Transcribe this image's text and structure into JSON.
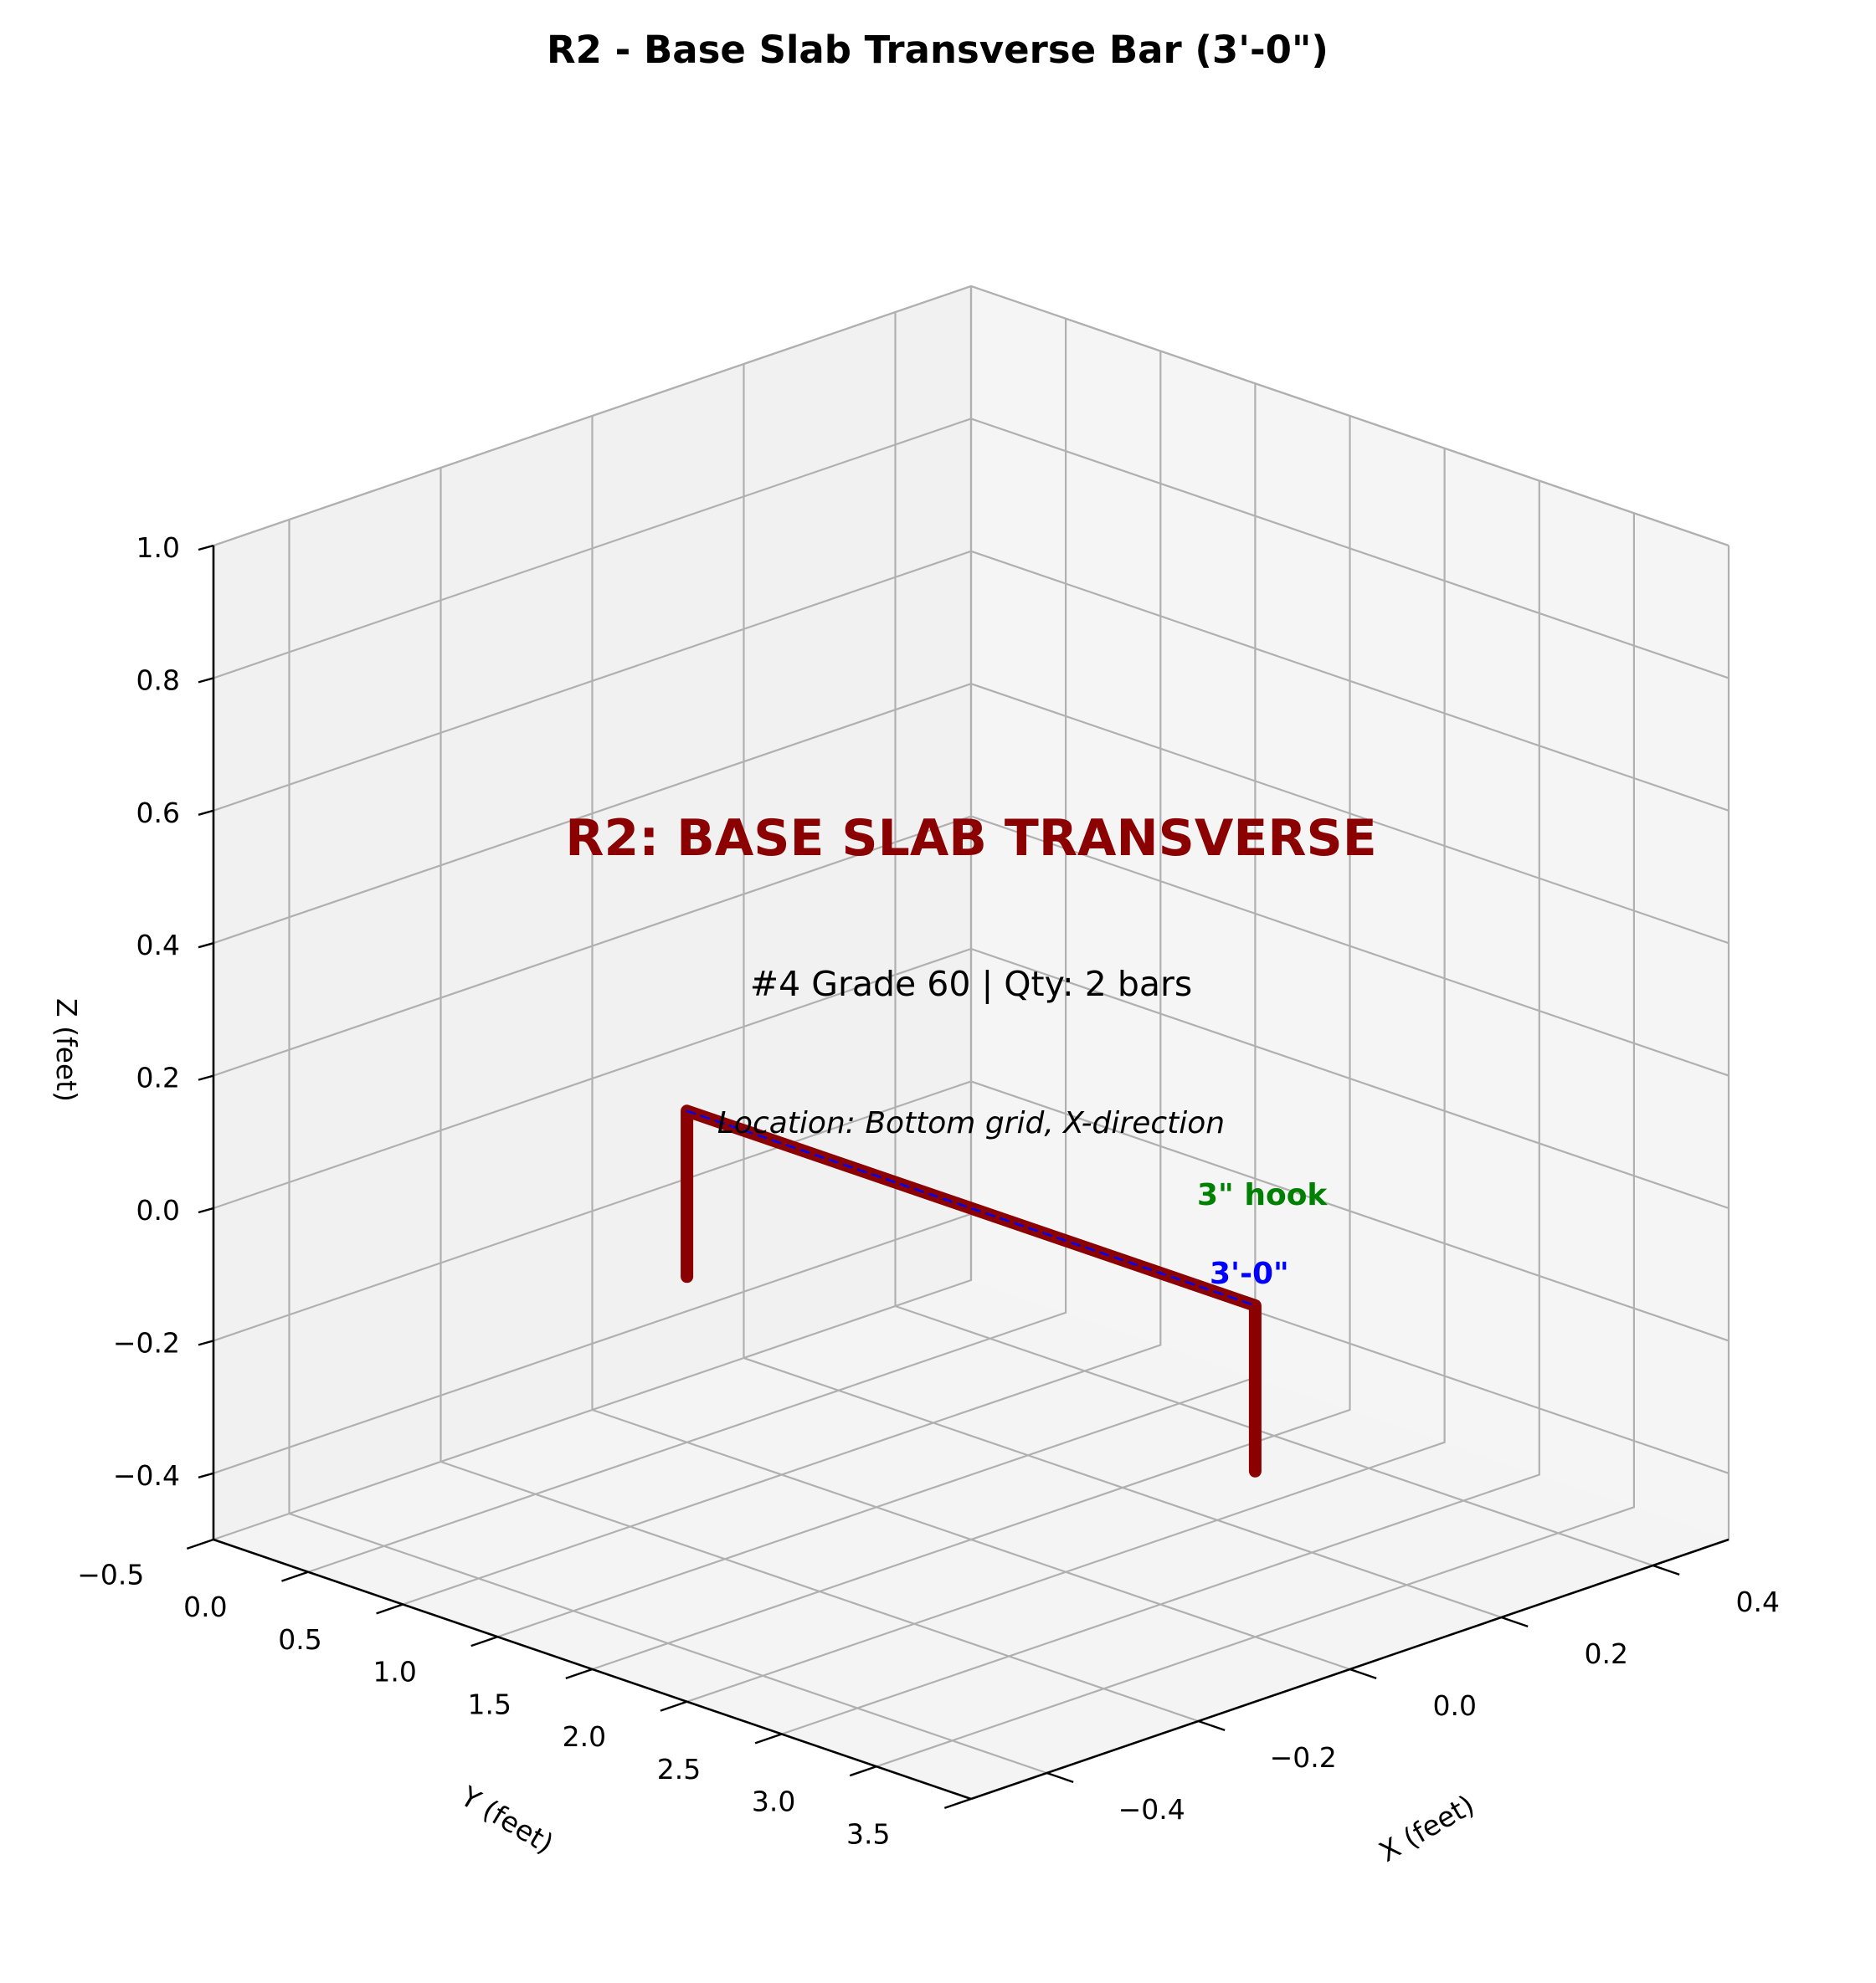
{
  "figure": {
    "title": "R2 - Base Slab Transverse Bar (3'-0\")"
  },
  "chart_data": {
    "type": "line3d",
    "title": "R2 - Base Slab Transverse Bar (3'-0\")",
    "xlabel": "X (feet)",
    "ylabel": "Y (feet)",
    "zlabel": "Z (feet)",
    "xlim": [
      -0.5,
      3.5
    ],
    "ylim": [
      -0.5,
      0.5
    ],
    "zlim": [
      -0.5,
      1.0
    ],
    "x_ticks": [
      "−0.5",
      "0.0",
      "0.5",
      "1.0",
      "1.5",
      "2.0",
      "2.5",
      "3.0",
      "3.5"
    ],
    "y_ticks": [
      "−0.4",
      "−0.2",
      "0.0",
      "0.2",
      "0.4"
    ],
    "z_ticks": [
      "−0.4",
      "−0.2",
      "0.0",
      "0.2",
      "0.4",
      "0.6",
      "0.8",
      "1.0"
    ],
    "grid": true,
    "series": [
      {
        "color": "#8b0000",
        "style": "thick solid",
        "points": [
          [
            0,
            0,
            -0.25
          ],
          [
            0,
            0,
            0
          ],
          [
            3,
            0,
            0
          ],
          [
            3,
            0,
            -0.25
          ]
        ]
      },
      {
        "color": "#0000ff",
        "style": "dashed",
        "points": [
          [
            0,
            0,
            0
          ],
          [
            3,
            0,
            0
          ]
        ]
      }
    ],
    "annotations": {
      "heading": "R2: BASE SLAB TRANSVERSE",
      "spec": "#4 Grade 60 | Qty: 2 bars",
      "location": "Location: Bottom grid, X-direction",
      "hook": "3\" hook",
      "length": "3'-0\""
    },
    "colors": {
      "heading": "#8b0000",
      "bar": "#8b0000",
      "hook_label": "#008000",
      "length_label": "#0000ff"
    }
  }
}
